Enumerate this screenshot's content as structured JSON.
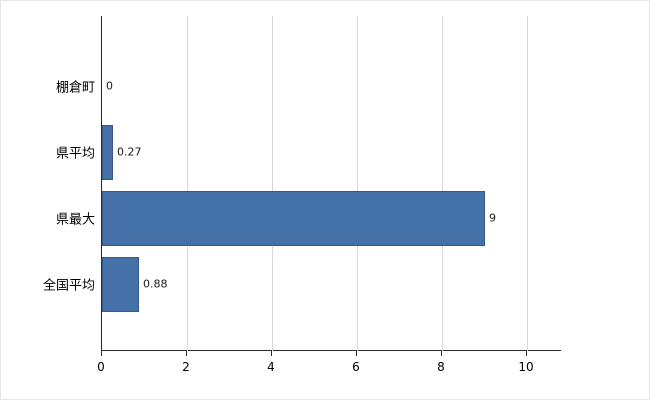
{
  "chart_data": {
    "type": "bar",
    "orientation": "horizontal",
    "title": "",
    "xlabel": "",
    "ylabel": "",
    "categories": [
      "棚倉町",
      "県平均",
      "県最大",
      "全国平均"
    ],
    "values": [
      0,
      0.27,
      9,
      0.88
    ],
    "value_labels": [
      "0",
      "0.27",
      "9",
      "0.88"
    ],
    "xlim": [
      0,
      10
    ],
    "xticks": [
      0,
      2,
      4,
      6,
      8,
      10
    ],
    "xtick_labels": [
      "0",
      "2",
      "4",
      "6",
      "8",
      "10"
    ],
    "grid": true,
    "legend": "none",
    "bar_color": "#4472a8",
    "bar_border_color": "#34598a",
    "gridline_color": "#d9d9d9",
    "axis_color": "#2b2b2b",
    "background_color": "#ffffff"
  }
}
